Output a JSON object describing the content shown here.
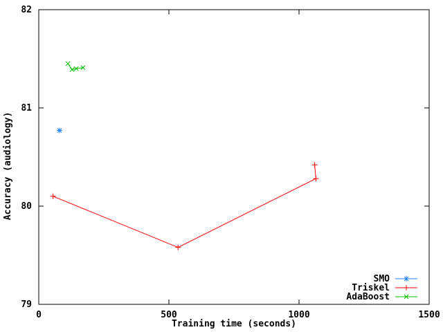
{
  "chart_data": {
    "type": "line",
    "title": "",
    "xlabel": "Training time (seconds)",
    "ylabel": "Accuracy (audiology)",
    "xlim": [
      0,
      1500
    ],
    "ylim": [
      79,
      82
    ],
    "xticks": [
      {
        "value": 0,
        "label": "0"
      },
      {
        "value": 500,
        "label": "500"
      },
      {
        "value": 1000,
        "label": "1000"
      },
      {
        "value": 1500,
        "label": "1500"
      }
    ],
    "yticks": [
      {
        "value": 79,
        "label": "79"
      },
      {
        "value": 80,
        "label": "80"
      },
      {
        "value": 81,
        "label": "81"
      },
      {
        "value": 82,
        "label": "82"
      }
    ],
    "grid": false,
    "legend_position": "bottom-right-inside",
    "border_color": "#000000",
    "background_color": "#ffffff",
    "series": [
      {
        "name": "SMO",
        "color": "#1e7fff",
        "marker": "asterisk",
        "points": [
          [
            80,
            80.77
          ]
        ]
      },
      {
        "name": "Triskel",
        "color": "#ff0000",
        "marker": "plus",
        "points": [
          [
            55,
            80.1
          ],
          [
            535,
            79.58
          ],
          [
            1065,
            80.28
          ],
          [
            1060,
            80.42
          ]
        ]
      },
      {
        "name": "AdaBoost",
        "color": "#00c000",
        "marker": "x",
        "points": [
          [
            112,
            81.45
          ],
          [
            128,
            81.39
          ],
          [
            144,
            81.4
          ],
          [
            170,
            81.41
          ]
        ]
      }
    ]
  }
}
